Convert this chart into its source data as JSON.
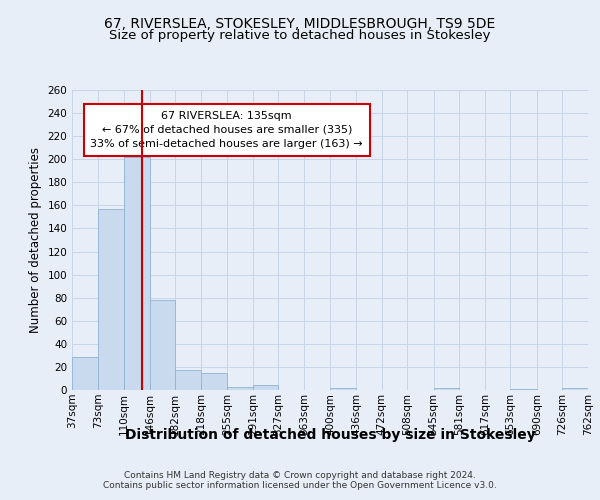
{
  "title": "67, RIVERSLEA, STOKESLEY, MIDDLESBROUGH, TS9 5DE",
  "subtitle": "Size of property relative to detached houses in Stokesley",
  "xlabel": "Distribution of detached houses by size in Stokesley",
  "ylabel": "Number of detached properties",
  "bin_edges": [
    37,
    73,
    110,
    146,
    182,
    218,
    255,
    291,
    327,
    363,
    400,
    436,
    472,
    508,
    545,
    581,
    617,
    653,
    690,
    726,
    762
  ],
  "bar_heights": [
    29,
    157,
    202,
    78,
    17,
    15,
    3,
    4,
    0,
    0,
    2,
    0,
    0,
    0,
    2,
    0,
    0,
    1,
    0,
    2
  ],
  "bar_color": "#c9d9ee",
  "bar_edge_color": "#8eb4d4",
  "grid_color": "#c8d4e8",
  "vline_x": 135,
  "vline_color": "#cc0000",
  "annotation_text": "67 RIVERSLEA: 135sqm\n← 67% of detached houses are smaller (335)\n33% of semi-detached houses are larger (163) →",
  "annotation_box_color": "#ffffff",
  "annotation_box_edge": "#cc0000",
  "ylim": [
    0,
    260
  ],
  "yticks": [
    0,
    20,
    40,
    60,
    80,
    100,
    120,
    140,
    160,
    180,
    200,
    220,
    240,
    260
  ],
  "footer_text": "Contains HM Land Registry data © Crown copyright and database right 2024.\nContains public sector information licensed under the Open Government Licence v3.0.",
  "background_color": "#e8eef8",
  "title_fontsize": 10,
  "subtitle_fontsize": 9.5,
  "xlabel_fontsize": 10,
  "ylabel_fontsize": 8.5,
  "tick_fontsize": 7.5,
  "annotation_fontsize": 8,
  "footer_fontsize": 6.5
}
